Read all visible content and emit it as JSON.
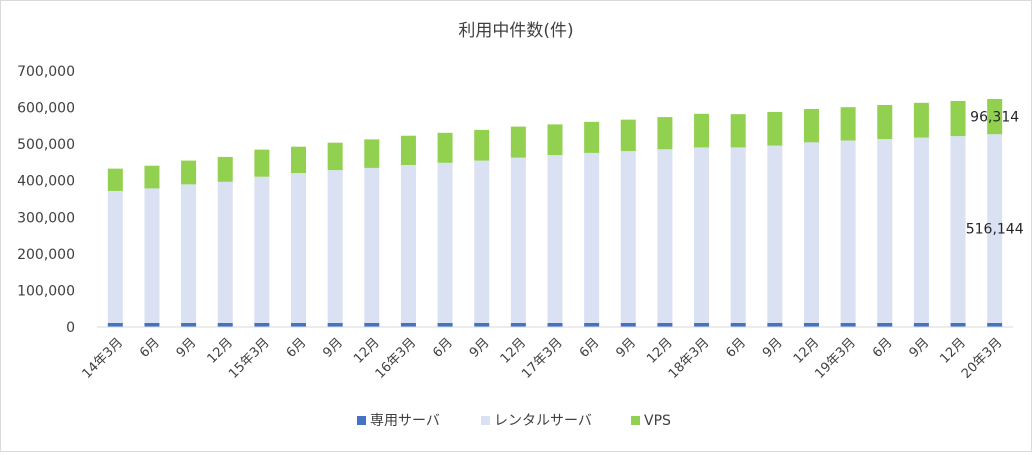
{
  "chart_data": {
    "type": "bar",
    "stacked": true,
    "title": "利用中件数(件)",
    "xlabel": "",
    "ylabel": "",
    "ylim": [
      0,
      700000
    ],
    "yticks": [
      0,
      100000,
      200000,
      300000,
      400000,
      500000,
      600000,
      700000
    ],
    "ytick_labels": [
      "0",
      "100,000",
      "200,000",
      "300,000",
      "400,000",
      "500,000",
      "600,000",
      "700,000"
    ],
    "grid": false,
    "legend_position": "bottom",
    "categories": [
      "14年3月",
      "6月",
      "9月",
      "12月",
      "15年3月",
      "6月",
      "9月",
      "12月",
      "16年3月",
      "6月",
      "9月",
      "12月",
      "17年3月",
      "6月",
      "9月",
      "12月",
      "18年3月",
      "6月",
      "9月",
      "12月",
      "19年3月",
      "6月",
      "9月",
      "12月",
      "20年3月"
    ],
    "series": [
      {
        "name": "専用サーバ",
        "color": "#4472c4",
        "values": [
          11000,
          11000,
          11000,
          11000,
          11000,
          11000,
          11000,
          11000,
          11000,
          11000,
          11000,
          11000,
          11000,
          11000,
          11000,
          11000,
          11000,
          11000,
          11000,
          11000,
          11000,
          11000,
          11000,
          11000,
          11000
        ]
      },
      {
        "name": "レンタルサーバ",
        "color": "#d9e1f2",
        "values": [
          361000,
          368000,
          379000,
          386000,
          400000,
          410000,
          418000,
          424000,
          432000,
          438000,
          444000,
          452000,
          459000,
          465000,
          470000,
          475000,
          480000,
          480000,
          485000,
          494000,
          499000,
          503000,
          507000,
          511000,
          516144
        ]
      },
      {
        "name": "VPS",
        "color": "#92d050",
        "values": [
          61000,
          62000,
          65000,
          68000,
          74000,
          72000,
          75000,
          78000,
          80000,
          82000,
          84000,
          85000,
          84000,
          85000,
          86000,
          88000,
          92000,
          91000,
          92000,
          91000,
          91000,
          93000,
          95000,
          96000,
          96314
        ]
      }
    ],
    "data_labels": [
      {
        "text": "96,314",
        "series": "VPS",
        "category_index": 24
      },
      {
        "text": "516,144",
        "series": "レンタルサーバ",
        "category_index": 24
      }
    ]
  }
}
